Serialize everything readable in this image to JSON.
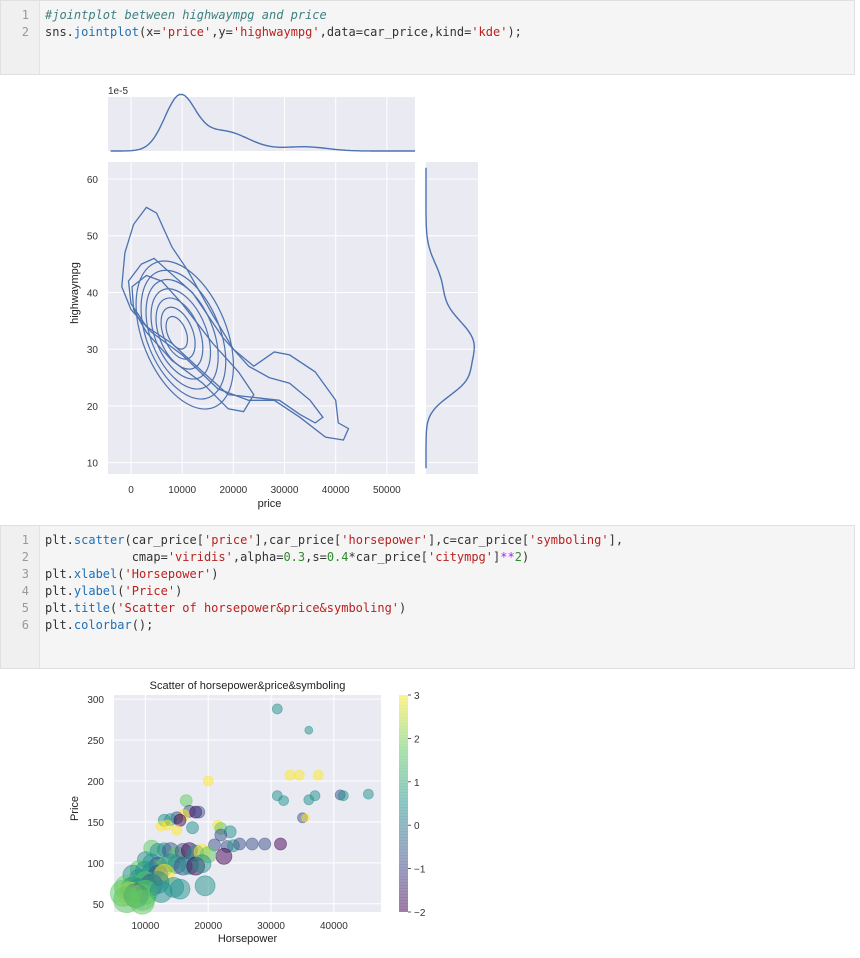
{
  "cells": [
    {
      "lines": [
        {
          "n": "1",
          "tokens": [
            {
              "t": "#jointplot between highwaympg and price",
              "c": "c-com"
            }
          ]
        },
        {
          "n": "2",
          "tokens": [
            {
              "t": "sns.",
              "c": ""
            },
            {
              "t": "jointplot",
              "c": "c-fn"
            },
            {
              "t": "(x=",
              "c": ""
            },
            {
              "t": "'price'",
              "c": "c-str"
            },
            {
              "t": ",y=",
              "c": ""
            },
            {
              "t": "'highwaympg'",
              "c": "c-str"
            },
            {
              "t": ",data=car_price,kind=",
              "c": ""
            },
            {
              "t": "'kde'",
              "c": "c-str"
            },
            {
              "t": ");",
              "c": ""
            }
          ]
        }
      ]
    },
    {
      "lines": [
        {
          "n": "1",
          "tokens": [
            {
              "t": "plt.",
              "c": ""
            },
            {
              "t": "scatter",
              "c": "c-fn"
            },
            {
              "t": "(car_price[",
              "c": ""
            },
            {
              "t": "'price'",
              "c": "c-str"
            },
            {
              "t": "],car_price[",
              "c": ""
            },
            {
              "t": "'horsepower'",
              "c": "c-str"
            },
            {
              "t": "],c=car_price[",
              "c": ""
            },
            {
              "t": "'symboling'",
              "c": "c-str"
            },
            {
              "t": "],",
              "c": ""
            }
          ]
        },
        {
          "n": "2",
          "tokens": [
            {
              "t": "            cmap=",
              "c": ""
            },
            {
              "t": "'viridis'",
              "c": "c-str"
            },
            {
              "t": ",alpha=",
              "c": ""
            },
            {
              "t": "0.3",
              "c": "c-num"
            },
            {
              "t": ",s=",
              "c": ""
            },
            {
              "t": "0.4",
              "c": "c-num"
            },
            {
              "t": "*car_price[",
              "c": ""
            },
            {
              "t": "'citympg'",
              "c": "c-str"
            },
            {
              "t": "]",
              "c": ""
            },
            {
              "t": "**",
              "c": "c-op"
            },
            {
              "t": "2",
              "c": "c-num"
            },
            {
              "t": ")",
              "c": ""
            }
          ]
        },
        {
          "n": "3",
          "tokens": [
            {
              "t": "plt.",
              "c": ""
            },
            {
              "t": "xlabel",
              "c": "c-fn"
            },
            {
              "t": "(",
              "c": ""
            },
            {
              "t": "'Horsepower'",
              "c": "c-str"
            },
            {
              "t": ")",
              "c": ""
            }
          ]
        },
        {
          "n": "4",
          "tokens": [
            {
              "t": "plt.",
              "c": ""
            },
            {
              "t": "ylabel",
              "c": "c-fn"
            },
            {
              "t": "(",
              "c": ""
            },
            {
              "t": "'Price'",
              "c": "c-str"
            },
            {
              "t": ")",
              "c": ""
            }
          ]
        },
        {
          "n": "5",
          "tokens": [
            {
              "t": "plt.",
              "c": ""
            },
            {
              "t": "title",
              "c": "c-fn"
            },
            {
              "t": "(",
              "c": ""
            },
            {
              "t": "'Scatter of horsepower&price&symboling'",
              "c": "c-str"
            },
            {
              "t": ")",
              "c": ""
            }
          ]
        },
        {
          "n": "6",
          "tokens": [
            {
              "t": "plt.",
              "c": ""
            },
            {
              "t": "colorbar",
              "c": "c-fn"
            },
            {
              "t": "();",
              "c": ""
            }
          ]
        }
      ]
    }
  ],
  "chart_data": [
    {
      "type": "kde-jointplot",
      "xlabel": "price",
      "ylabel": "highwaympg",
      "x_ticks": [
        "0",
        "10000",
        "20000",
        "30000",
        "40000",
        "50000"
      ],
      "y_ticks": [
        "10",
        "20",
        "30",
        "40",
        "50",
        "60"
      ],
      "xlim": [
        -4500,
        55500
      ],
      "ylim": [
        8,
        63
      ],
      "marginal_offset_label": "1e-5",
      "kde_peak": {
        "price": 8500,
        "highwaympg": 33
      },
      "line_color": "#4c72b0",
      "grid": true,
      "background": "#eaeaf2"
    },
    {
      "type": "scatter",
      "title": "Scatter of horsepower&price&symboling",
      "xlabel": "Horsepower",
      "ylabel": "Price",
      "x_ticks": [
        "10000",
        "20000",
        "30000",
        "40000"
      ],
      "y_ticks": [
        "50",
        "100",
        "150",
        "200",
        "250",
        "300"
      ],
      "xlim": [
        5000,
        47500
      ],
      "ylim": [
        40,
        305
      ],
      "colorbar": {
        "label_ticks": [
          "3",
          "2",
          "1",
          "0",
          "−1",
          "−2"
        ],
        "range": [
          -2,
          3
        ],
        "cmap": "viridis"
      },
      "alpha": 0.3,
      "points": [
        {
          "x": 31000,
          "y": 288,
          "c": 1,
          "r": 5
        },
        {
          "x": 36000,
          "y": 262,
          "c": 0,
          "r": 4
        },
        {
          "x": 20000,
          "y": 200,
          "c": 3,
          "r": 5
        },
        {
          "x": 33000,
          "y": 207,
          "c": 3,
          "r": 5
        },
        {
          "x": 34500,
          "y": 207,
          "c": 3,
          "r": 5
        },
        {
          "x": 37500,
          "y": 207,
          "c": 3,
          "r": 5
        },
        {
          "x": 31000,
          "y": 182,
          "c": 0,
          "r": 5
        },
        {
          "x": 32000,
          "y": 176,
          "c": 0,
          "r": 5
        },
        {
          "x": 36000,
          "y": 177,
          "c": 0,
          "r": 5
        },
        {
          "x": 37000,
          "y": 182,
          "c": 0,
          "r": 5
        },
        {
          "x": 41000,
          "y": 183,
          "c": -1,
          "r": 5
        },
        {
          "x": 41500,
          "y": 182,
          "c": 0,
          "r": 5
        },
        {
          "x": 45500,
          "y": 184,
          "c": 1,
          "r": 5
        },
        {
          "x": 35000,
          "y": 155,
          "c": -1,
          "r": 5
        },
        {
          "x": 35500,
          "y": 155,
          "c": 3,
          "r": 4
        },
        {
          "x": 16500,
          "y": 176,
          "c": 2,
          "r": 6
        },
        {
          "x": 17000,
          "y": 163,
          "c": -1,
          "r": 6
        },
        {
          "x": 18000,
          "y": 162,
          "c": -2,
          "r": 6
        },
        {
          "x": 18500,
          "y": 162,
          "c": -1,
          "r": 6
        },
        {
          "x": 16000,
          "y": 158,
          "c": 3,
          "r": 6
        },
        {
          "x": 15000,
          "y": 155,
          "c": -1,
          "r": 6
        },
        {
          "x": 13000,
          "y": 152,
          "c": 1,
          "r": 6
        },
        {
          "x": 14000,
          "y": 153,
          "c": 0,
          "r": 6
        },
        {
          "x": 15500,
          "y": 152,
          "c": -2,
          "r": 6
        },
        {
          "x": 12500,
          "y": 145,
          "c": 3,
          "r": 5
        },
        {
          "x": 13500,
          "y": 146,
          "c": 3,
          "r": 5
        },
        {
          "x": 15000,
          "y": 140,
          "c": 3,
          "r": 5
        },
        {
          "x": 17500,
          "y": 143,
          "c": 0,
          "r": 6
        },
        {
          "x": 21500,
          "y": 146,
          "c": 3,
          "r": 5
        },
        {
          "x": 22000,
          "y": 142,
          "c": 2,
          "r": 6
        },
        {
          "x": 23500,
          "y": 138,
          "c": 1,
          "r": 6
        },
        {
          "x": 22000,
          "y": 134,
          "c": -1,
          "r": 6
        },
        {
          "x": 21000,
          "y": 122,
          "c": -1,
          "r": 6
        },
        {
          "x": 23000,
          "y": 120,
          "c": -1,
          "r": 6
        },
        {
          "x": 24000,
          "y": 121,
          "c": 0,
          "r": 6
        },
        {
          "x": 25000,
          "y": 123,
          "c": -1,
          "r": 6
        },
        {
          "x": 27000,
          "y": 123,
          "c": -1,
          "r": 6
        },
        {
          "x": 29000,
          "y": 123,
          "c": -1,
          "r": 6
        },
        {
          "x": 31500,
          "y": 123,
          "c": -2,
          "r": 6
        },
        {
          "x": 22500,
          "y": 108,
          "c": -2,
          "r": 8
        },
        {
          "x": 11000,
          "y": 118,
          "c": 2,
          "r": 8
        },
        {
          "x": 12000,
          "y": 114,
          "c": 1,
          "r": 8
        },
        {
          "x": 13000,
          "y": 116,
          "c": 0,
          "r": 7
        },
        {
          "x": 14000,
          "y": 115,
          "c": -1,
          "r": 8
        },
        {
          "x": 15000,
          "y": 110,
          "c": 2,
          "r": 8
        },
        {
          "x": 16000,
          "y": 114,
          "c": -1,
          "r": 8
        },
        {
          "x": 17000,
          "y": 115,
          "c": -2,
          "r": 8
        },
        {
          "x": 18000,
          "y": 112,
          "c": 1,
          "r": 8
        },
        {
          "x": 19000,
          "y": 113,
          "c": 3,
          "r": 8
        },
        {
          "x": 20000,
          "y": 110,
          "c": 2,
          "r": 8
        },
        {
          "x": 10000,
          "y": 104,
          "c": 0,
          "r": 8
        },
        {
          "x": 11000,
          "y": 100,
          "c": 1,
          "r": 9
        },
        {
          "x": 12000,
          "y": 96,
          "c": -1,
          "r": 9
        },
        {
          "x": 13000,
          "y": 95,
          "c": 2,
          "r": 9
        },
        {
          "x": 14000,
          "y": 100,
          "c": 0,
          "r": 9
        },
        {
          "x": 15000,
          "y": 98,
          "c": 1,
          "r": 9
        },
        {
          "x": 16000,
          "y": 96,
          "c": -1,
          "r": 9
        },
        {
          "x": 17000,
          "y": 97,
          "c": 0,
          "r": 9
        },
        {
          "x": 18000,
          "y": 96,
          "c": -2,
          "r": 9
        },
        {
          "x": 19000,
          "y": 99,
          "c": 1,
          "r": 9
        },
        {
          "x": 9000,
          "y": 92,
          "c": 2,
          "r": 9
        },
        {
          "x": 10000,
          "y": 90,
          "c": 1,
          "r": 10
        },
        {
          "x": 11000,
          "y": 88,
          "c": 0,
          "r": 10
        },
        {
          "x": 12000,
          "y": 85,
          "c": -1,
          "r": 10
        },
        {
          "x": 13000,
          "y": 86,
          "c": 3,
          "r": 10
        },
        {
          "x": 8000,
          "y": 85,
          "c": 1,
          "r": 10
        },
        {
          "x": 9000,
          "y": 80,
          "c": 0,
          "r": 10
        },
        {
          "x": 10000,
          "y": 76,
          "c": 2,
          "r": 11
        },
        {
          "x": 11000,
          "y": 73,
          "c": -1,
          "r": 11
        },
        {
          "x": 12000,
          "y": 76,
          "c": 1,
          "r": 11
        },
        {
          "x": 7000,
          "y": 70,
          "c": 2,
          "r": 12
        },
        {
          "x": 8000,
          "y": 68,
          "c": 1,
          "r": 12
        },
        {
          "x": 9000,
          "y": 66,
          "c": 0,
          "r": 12
        },
        {
          "x": 10000,
          "y": 64,
          "c": 2,
          "r": 12
        },
        {
          "x": 7500,
          "y": 62,
          "c": 3,
          "r": 12
        },
        {
          "x": 8500,
          "y": 60,
          "c": -1,
          "r": 12
        },
        {
          "x": 6500,
          "y": 63,
          "c": 2,
          "r": 13
        },
        {
          "x": 9500,
          "y": 58,
          "c": 2,
          "r": 13
        },
        {
          "x": 14500,
          "y": 70,
          "c": 0,
          "r": 10
        },
        {
          "x": 15500,
          "y": 68,
          "c": 1,
          "r": 10
        },
        {
          "x": 19500,
          "y": 72,
          "c": 0,
          "r": 10
        },
        {
          "x": 12500,
          "y": 65,
          "c": 0,
          "r": 11
        },
        {
          "x": 9500,
          "y": 52,
          "c": 2,
          "r": 12
        },
        {
          "x": 7000,
          "y": 55,
          "c": 2,
          "r": 13
        }
      ]
    }
  ]
}
